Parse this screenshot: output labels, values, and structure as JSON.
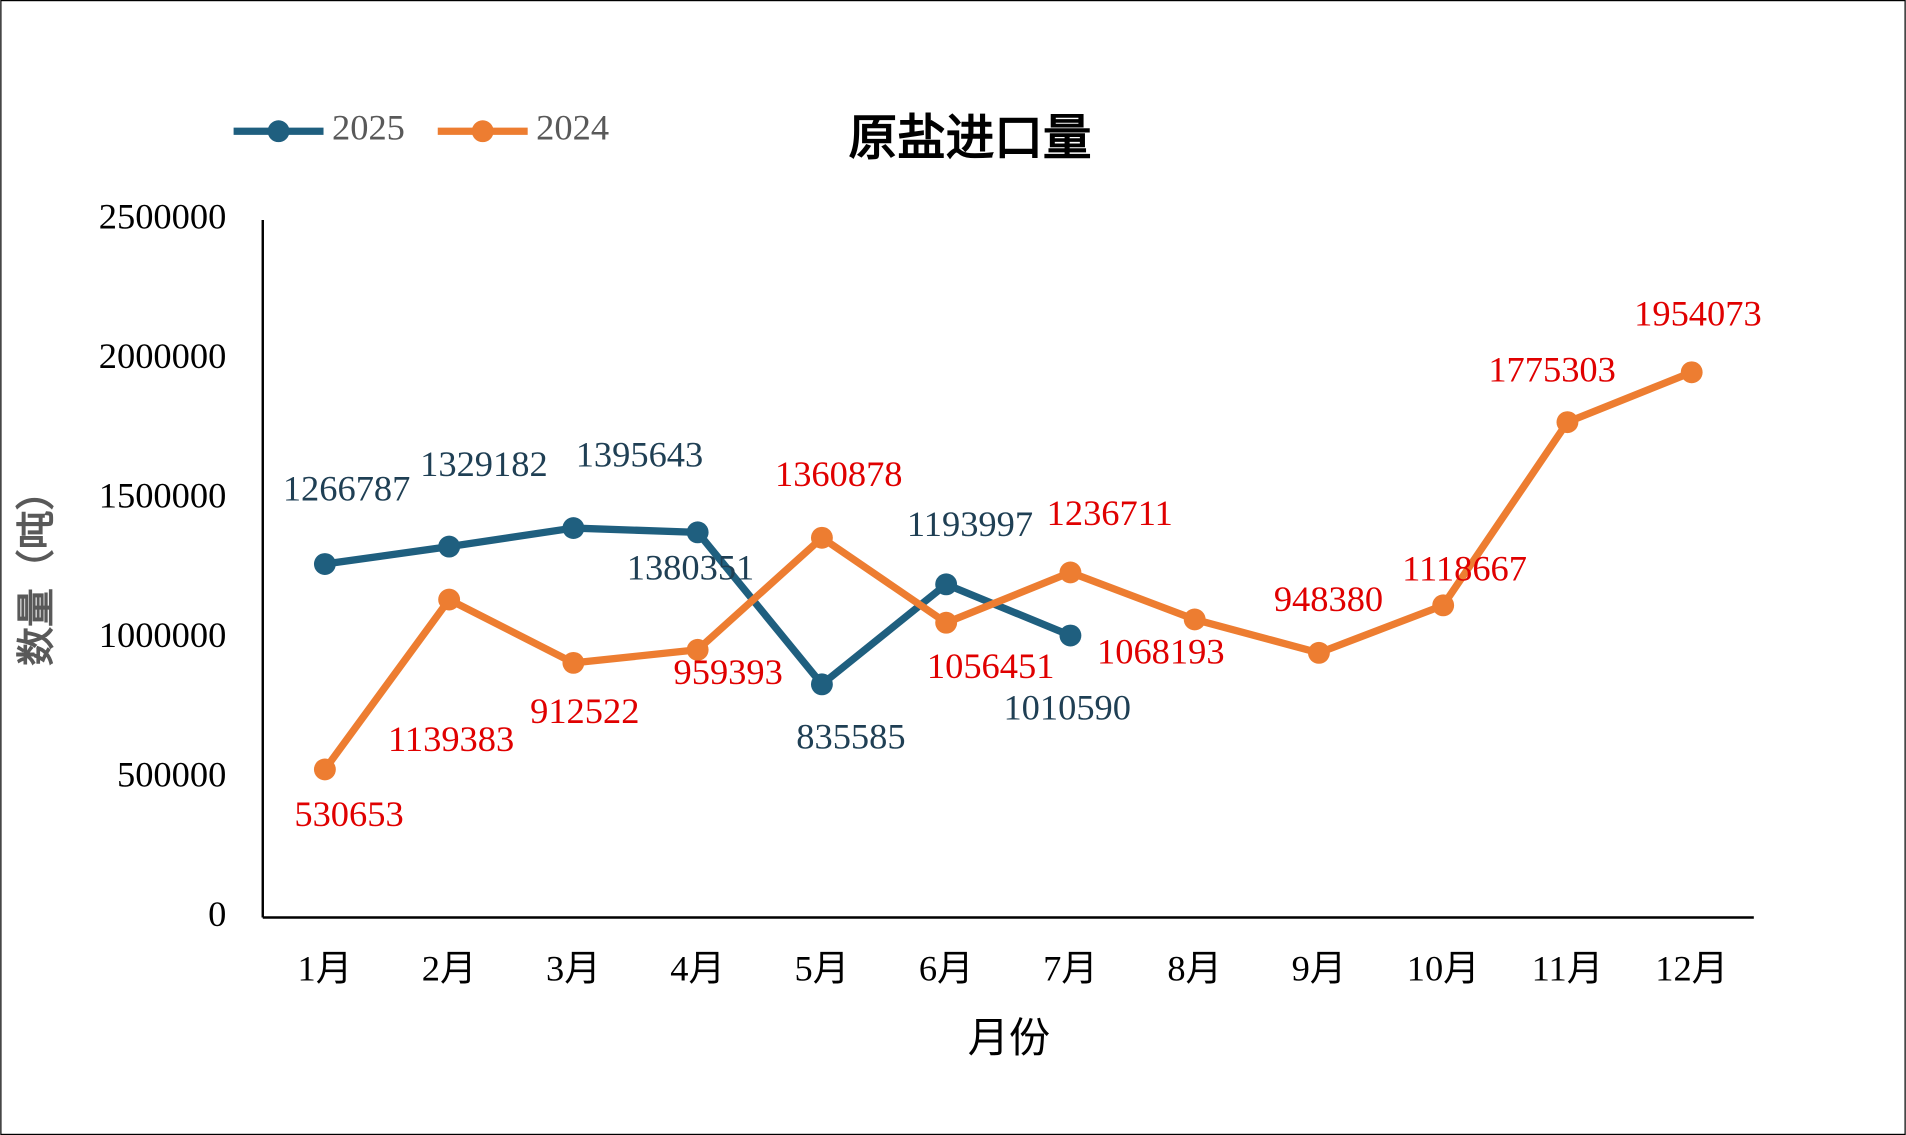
{
  "chart_data": {
    "type": "line",
    "title": "原盐进口量",
    "xlabel": "月份",
    "ylabel": "数量（吨）",
    "categories": [
      "1月",
      "2月",
      "3月",
      "4月",
      "5月",
      "6月",
      "7月",
      "8月",
      "9月",
      "10月",
      "11月",
      "12月"
    ],
    "series": [
      {
        "name": "2025",
        "color": "#1f5f7f",
        "label_color": "#1f3f54",
        "values": [
          1266787,
          1329182,
          1395643,
          1380351,
          835585,
          1193997,
          1010590,
          null,
          null,
          null,
          null,
          null
        ]
      },
      {
        "name": "2024",
        "color": "#ed7d31",
        "label_color": "#e00000",
        "values": [
          530653,
          1139383,
          912522,
          959393,
          1360878,
          1056451,
          1236711,
          1068193,
          948380,
          1118667,
          1775303,
          1954073
        ]
      }
    ],
    "ylim": [
      0,
      2500000
    ],
    "yticks": [
      0,
      500000,
      1000000,
      1500000,
      2000000,
      2500000
    ],
    "grid": false,
    "legend": "top-left"
  }
}
